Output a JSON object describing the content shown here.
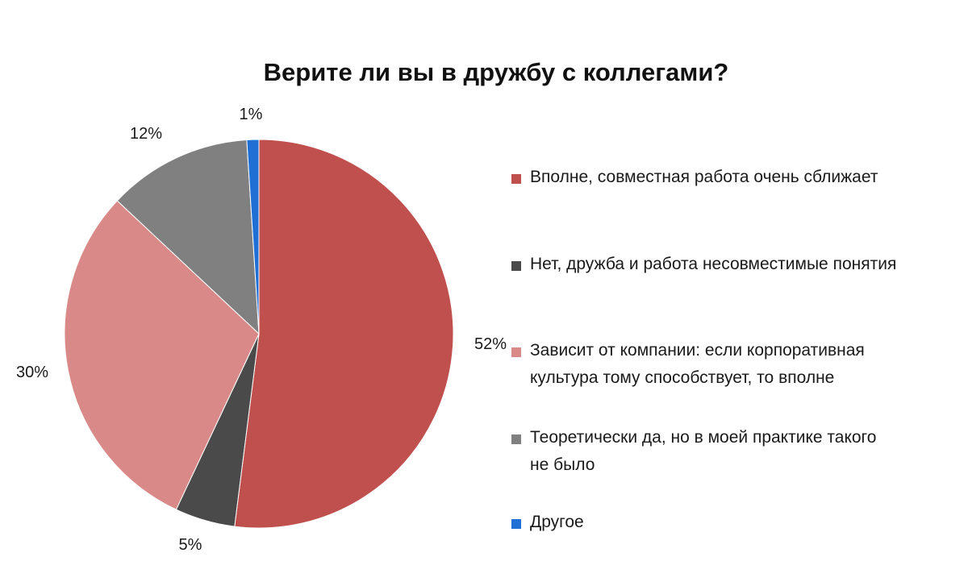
{
  "chart_data": {
    "type": "pie",
    "title": "Верите ли вы в дружбу с коллегами?",
    "start": "12 o'clock, clockwise",
    "legend_position": "right",
    "slices": [
      {
        "name": "Вполне, совместная работа  очень сближает",
        "value": 52,
        "label": "52%",
        "color": "#c0504d"
      },
      {
        "name": "Нет, дружба  и работа  несовместимые понятия",
        "value": 5,
        "label": "5%",
        "color": "#4a4a4a"
      },
      {
        "name": "Зависит от компании: если корпоративная культура тому способствует, то вполне",
        "value": 30,
        "label": "30%",
        "color": "#d98a88"
      },
      {
        "name": "Теоретически да, но в моей практике такого не было",
        "value": 12,
        "label": "12%",
        "color": "#808080"
      },
      {
        "name": "Другое",
        "value": 1,
        "label": "1%",
        "color": "#1f6fd4"
      }
    ]
  },
  "legend_lines": [
    "Вполне, совместная работа  очень сближает",
    "Нет, дружба  и работа  несовместимые понятия",
    "Зависит от компании: если корпоративная\nкультура тому способствует, то вполне",
    "Теоретически да, но в моей практике такого\nне было",
    "Другое"
  ]
}
